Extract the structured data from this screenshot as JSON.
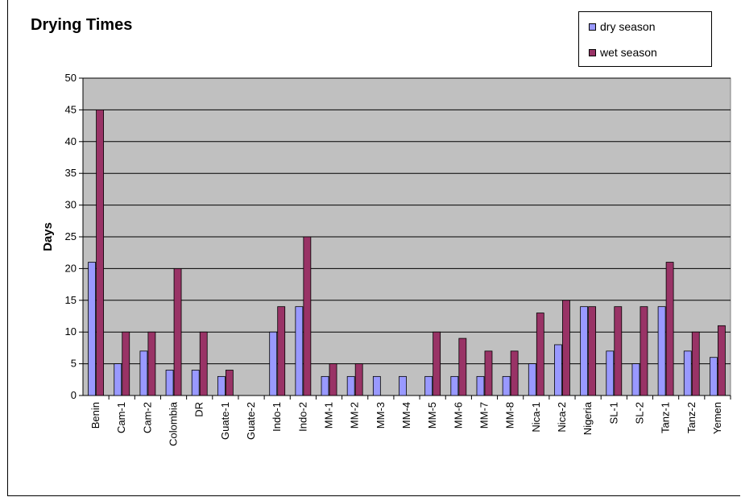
{
  "chart_data": {
    "type": "bar",
    "title": "Drying Times",
    "ylabel": "Days",
    "xlabel": "",
    "ylim": [
      0,
      50
    ],
    "yticks": [
      0,
      5,
      10,
      15,
      20,
      25,
      30,
      35,
      40,
      45,
      50
    ],
    "grid": true,
    "legend_position": "top-right",
    "categories": [
      "Benin",
      "Cam-1",
      "Cam-2",
      "Colombia",
      "DR",
      "Guate-1",
      "Guate-2",
      "Indo-1",
      "Indo-2",
      "MM-1",
      "MM-2",
      "MM-3",
      "MM-4",
      "MM-5",
      "MM-6",
      "MM-7",
      "MM-8",
      "Nica-1",
      "Nica-2",
      "Nigeria",
      "SL-1",
      "SL-2",
      "Tanz-1",
      "Tanz-2",
      "Yemen"
    ],
    "series": [
      {
        "name": "dry season",
        "color": "#9999ff",
        "values": [
          21,
          5,
          7,
          4,
          4,
          3,
          0,
          10,
          14,
          3,
          3,
          3,
          3,
          3,
          3,
          3,
          3,
          5,
          8,
          14,
          7,
          5,
          14,
          7,
          6
        ]
      },
      {
        "name": "wet season",
        "color": "#993366",
        "values": [
          45,
          10,
          10,
          20,
          10,
          4,
          0,
          14,
          25,
          5,
          5,
          0,
          0,
          10,
          9,
          7,
          7,
          13,
          15,
          14,
          14,
          14,
          21,
          10,
          11
        ]
      }
    ],
    "plot_background": "#c0c0c0"
  }
}
